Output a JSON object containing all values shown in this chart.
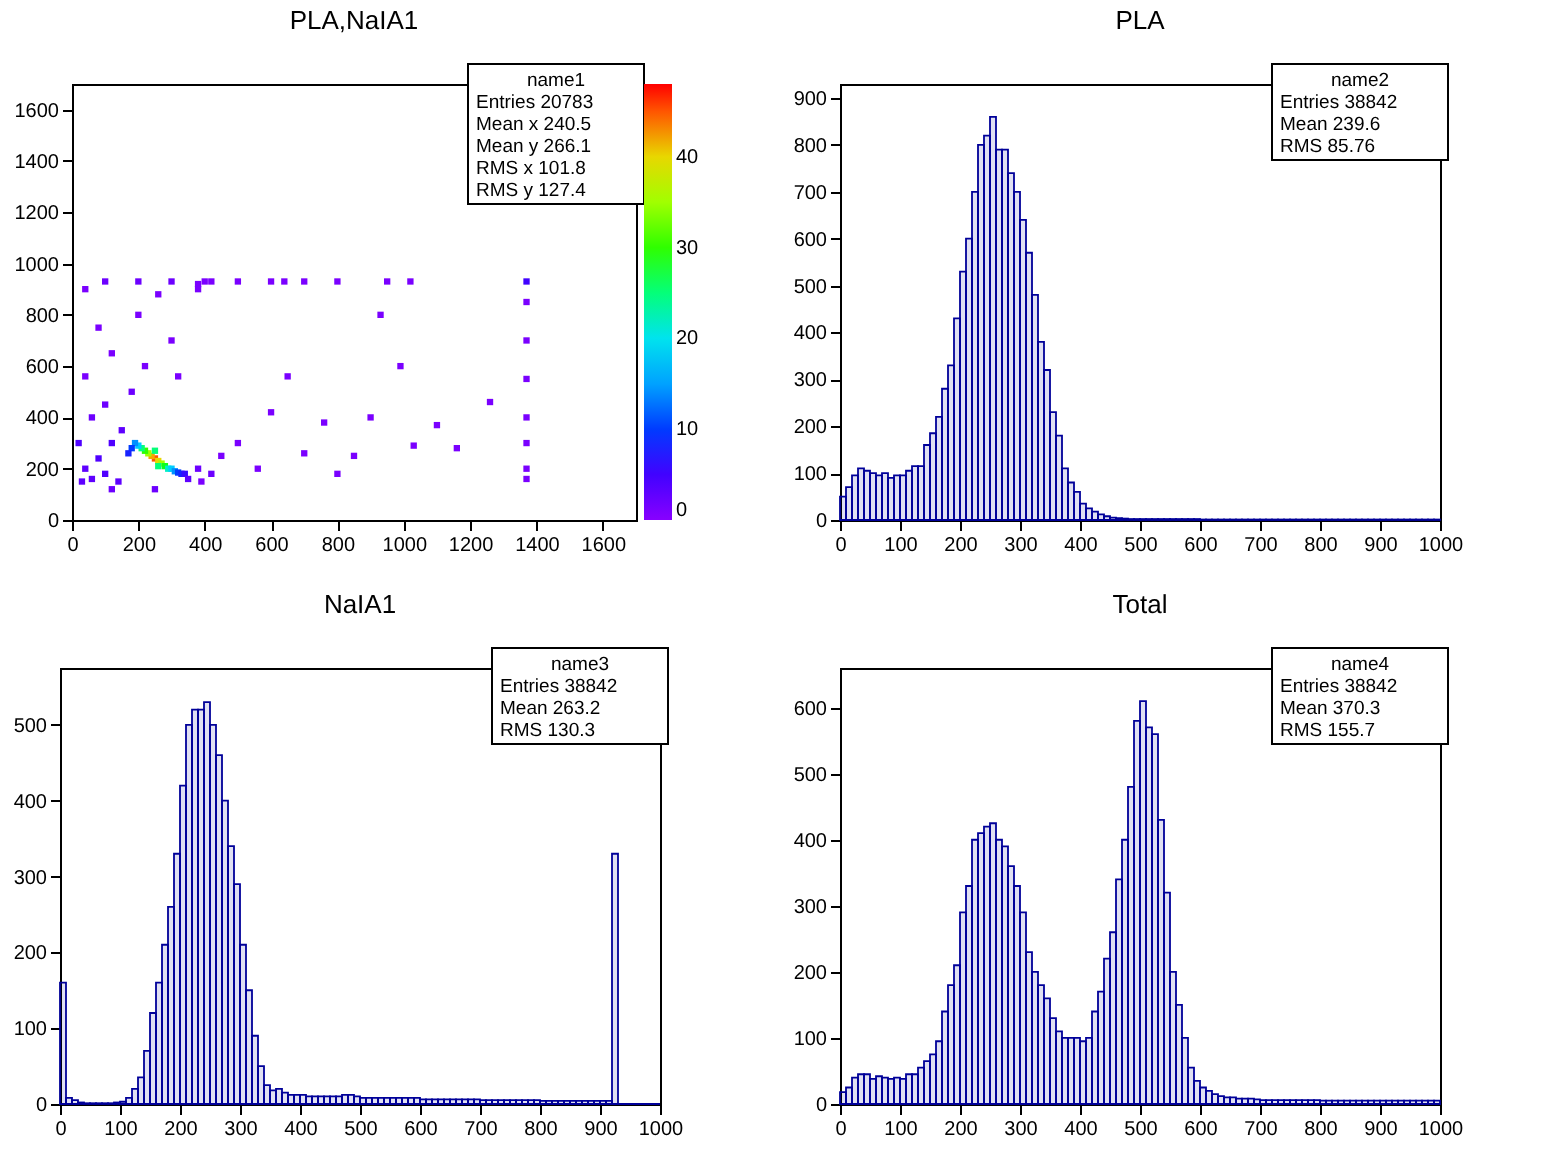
{
  "chart_data": [
    {
      "type": "scatter",
      "title": "PLA,NaIA1",
      "marker": "square",
      "x": [
        250,
        240,
        260,
        230,
        270,
        220,
        280,
        210,
        290,
        300,
        200,
        310,
        190,
        320,
        180,
        250,
        260,
        330,
        170,
        340,
        40,
        60,
        80,
        100,
        120,
        140,
        150,
        60,
        100,
        180,
        40,
        220,
        120,
        300,
        80,
        200,
        40,
        260,
        380,
        420,
        350,
        380,
        420,
        450,
        500,
        560,
        600,
        650,
        700,
        760,
        800,
        850,
        900,
        930,
        990,
        1030,
        1100,
        1160,
        1260,
        1370,
        1370,
        1370,
        1370,
        1370,
        1370,
        1370,
        1370,
        500,
        640,
        800,
        950,
        1020,
        380,
        320,
        20,
        30,
        120,
        250,
        390,
        600,
        700,
        100,
        200,
        300,
        400
      ],
      "values": [
        240,
        250,
        230,
        260,
        220,
        270,
        210,
        280,
        200,
        200,
        290,
        190,
        300,
        185,
        280,
        270,
        210,
        180,
        260,
        180,
        200,
        160,
        240,
        180,
        300,
        150,
        350,
        400,
        450,
        500,
        560,
        600,
        650,
        700,
        750,
        800,
        900,
        880,
        920,
        930,
        160,
        200,
        180,
        250,
        300,
        200,
        420,
        560,
        260,
        380,
        180,
        250,
        400,
        800,
        600,
        290,
        370,
        280,
        460,
        930,
        850,
        700,
        550,
        400,
        300,
        200,
        160,
        930,
        930,
        930,
        930,
        930,
        900,
        560,
        300,
        150,
        120,
        120,
        150,
        930,
        930,
        930,
        930,
        930,
        930
      ],
      "cvalues": [
        45,
        42,
        40,
        35,
        35,
        30,
        28,
        25,
        22,
        18,
        18,
        14,
        14,
        10,
        10,
        25,
        25,
        8,
        8,
        6,
        3,
        3,
        4,
        4,
        4,
        3,
        3,
        2,
        2,
        2,
        1,
        1,
        1,
        1,
        1,
        1,
        1,
        1,
        1,
        1,
        3,
        2,
        2,
        1,
        1,
        1,
        1,
        1,
        1,
        1,
        1,
        1,
        1,
        1,
        1,
        1,
        1,
        1,
        1,
        5,
        1,
        1,
        1,
        1,
        1,
        1,
        1,
        1,
        1,
        1,
        1,
        1,
        1,
        1,
        4,
        3,
        2,
        2,
        1,
        1,
        1,
        2,
        2,
        2,
        1
      ],
      "clim": [
        0,
        48
      ],
      "cticks": [
        0,
        10,
        20,
        30,
        40
      ],
      "xlim": [
        0,
        1700
      ],
      "xticks": [
        0,
        200,
        400,
        600,
        800,
        1000,
        1200,
        1400,
        1600
      ],
      "ylim": [
        0,
        1700
      ],
      "yticks": [
        0,
        200,
        400,
        600,
        800,
        1000,
        1200,
        1400,
        1600
      ],
      "annotations": [
        "name1",
        "Entries 20783",
        "Mean x 240.5",
        "Mean y 266.1",
        "RMS x 101.8",
        "RMS y 127.4"
      ]
    },
    {
      "type": "histogram",
      "title": "PLA",
      "color": "#000099",
      "bins": [
        0,
        10,
        20,
        30,
        40,
        50,
        60,
        70,
        80,
        90,
        100,
        110,
        120,
        130,
        140,
        150,
        160,
        170,
        180,
        190,
        200,
        210,
        220,
        230,
        240,
        250,
        260,
        270,
        280,
        290,
        300,
        310,
        320,
        330,
        340,
        350,
        360,
        370,
        380,
        390,
        400,
        410,
        420,
        430,
        440,
        450,
        460,
        470,
        480,
        490,
        500,
        510,
        520,
        530,
        540,
        550,
        560,
        570,
        580,
        590,
        600,
        610,
        620,
        630,
        640,
        650,
        660,
        670,
        680,
        690,
        700,
        710,
        720,
        730,
        740,
        750,
        760,
        770,
        780,
        790,
        800,
        810,
        820,
        830,
        840,
        850,
        860,
        870,
        880,
        890,
        900,
        910,
        920,
        930,
        940,
        950,
        960,
        970,
        980,
        990,
        1000
      ],
      "values": [
        50,
        70,
        95,
        110,
        105,
        100,
        95,
        100,
        90,
        95,
        95,
        105,
        115,
        115,
        160,
        185,
        220,
        280,
        330,
        430,
        530,
        600,
        700,
        800,
        820,
        860,
        790,
        790,
        740,
        700,
        640,
        570,
        480,
        380,
        320,
        230,
        180,
        110,
        80,
        60,
        35,
        25,
        18,
        12,
        8,
        5,
        4,
        3,
        2,
        2,
        2,
        2,
        2,
        2,
        2,
        2,
        2,
        2,
        2,
        2,
        1,
        1,
        1,
        1,
        1,
        1,
        1,
        1,
        1,
        1,
        1,
        1,
        1,
        1,
        1,
        1,
        1,
        1,
        1,
        1,
        1,
        1,
        1,
        1,
        1,
        1,
        1,
        1,
        1,
        1,
        1,
        1,
        1,
        1,
        1,
        1,
        1,
        1,
        1,
        1
      ],
      "xlim": [
        0,
        1000
      ],
      "xticks": [
        0,
        100,
        200,
        300,
        400,
        500,
        600,
        700,
        800,
        900,
        1000
      ],
      "ylim": [
        0,
        930
      ],
      "yticks": [
        0,
        100,
        200,
        300,
        400,
        500,
        600,
        700,
        800,
        900
      ],
      "annotations": [
        "name2",
        "Entries 38842",
        "Mean 239.6",
        "RMS 85.76"
      ]
    },
    {
      "type": "histogram",
      "title": "NaIA1",
      "color": "#000099",
      "bins": [
        0,
        10,
        20,
        30,
        40,
        50,
        60,
        70,
        80,
        90,
        100,
        110,
        120,
        130,
        140,
        150,
        160,
        170,
        180,
        190,
        200,
        210,
        220,
        230,
        240,
        250,
        260,
        270,
        280,
        290,
        300,
        310,
        320,
        330,
        340,
        350,
        360,
        370,
        380,
        390,
        400,
        410,
        420,
        430,
        440,
        450,
        460,
        470,
        480,
        490,
        500,
        510,
        520,
        530,
        540,
        550,
        560,
        570,
        580,
        590,
        600,
        610,
        620,
        630,
        640,
        650,
        660,
        670,
        680,
        690,
        700,
        710,
        720,
        730,
        740,
        750,
        760,
        770,
        780,
        790,
        800,
        810,
        820,
        830,
        840,
        850,
        860,
        870,
        880,
        890,
        900,
        910,
        920,
        930,
        940,
        950,
        960,
        970,
        980,
        990,
        1000
      ],
      "values": [
        160,
        8,
        5,
        2,
        1,
        1,
        1,
        1,
        1,
        2,
        3,
        8,
        20,
        35,
        70,
        120,
        160,
        210,
        260,
        330,
        420,
        500,
        520,
        520,
        530,
        500,
        460,
        400,
        340,
        290,
        210,
        150,
        90,
        50,
        25,
        18,
        20,
        15,
        12,
        12,
        12,
        10,
        10,
        10,
        10,
        10,
        10,
        12,
        12,
        10,
        8,
        8,
        8,
        8,
        8,
        8,
        8,
        8,
        8,
        8,
        6,
        6,
        6,
        6,
        6,
        6,
        6,
        6,
        6,
        6,
        5,
        5,
        5,
        5,
        5,
        5,
        5,
        5,
        5,
        5,
        4,
        4,
        4,
        4,
        4,
        4,
        4,
        4,
        4,
        4,
        4,
        4,
        330,
        0,
        0,
        0,
        0,
        0,
        0,
        0
      ],
      "xlim": [
        0,
        1000
      ],
      "xticks": [
        0,
        100,
        200,
        300,
        400,
        500,
        600,
        700,
        800,
        900,
        1000
      ],
      "ylim": [
        0,
        575
      ],
      "yticks": [
        0,
        100,
        200,
        300,
        400,
        500
      ],
      "annotations": [
        "name3",
        "Entries 38842",
        "Mean 263.2",
        "RMS 130.3"
      ]
    },
    {
      "type": "histogram",
      "title": "Total",
      "color": "#000099",
      "bins": [
        0,
        10,
        20,
        30,
        40,
        50,
        60,
        70,
        80,
        90,
        100,
        110,
        120,
        130,
        140,
        150,
        160,
        170,
        180,
        190,
        200,
        210,
        220,
        230,
        240,
        250,
        260,
        270,
        280,
        290,
        300,
        310,
        320,
        330,
        340,
        350,
        360,
        370,
        380,
        390,
        400,
        410,
        420,
        430,
        440,
        450,
        460,
        470,
        480,
        490,
        500,
        510,
        520,
        530,
        540,
        550,
        560,
        570,
        580,
        590,
        600,
        610,
        620,
        630,
        640,
        650,
        660,
        670,
        680,
        690,
        700,
        710,
        720,
        730,
        740,
        750,
        760,
        770,
        780,
        790,
        800,
        810,
        820,
        830,
        840,
        850,
        860,
        870,
        880,
        890,
        900,
        910,
        920,
        930,
        940,
        950,
        960,
        970,
        980,
        990,
        1000
      ],
      "values": [
        18,
        25,
        40,
        45,
        45,
        38,
        42,
        40,
        38,
        40,
        38,
        45,
        45,
        55,
        65,
        75,
        95,
        140,
        180,
        210,
        290,
        330,
        400,
        410,
        420,
        425,
        400,
        390,
        360,
        330,
        290,
        230,
        200,
        180,
        160,
        130,
        110,
        100,
        100,
        100,
        95,
        100,
        140,
        170,
        220,
        260,
        340,
        400,
        480,
        580,
        610,
        570,
        560,
        430,
        320,
        200,
        150,
        100,
        55,
        35,
        25,
        20,
        15,
        12,
        10,
        10,
        8,
        8,
        8,
        7,
        6,
        6,
        6,
        6,
        6,
        6,
        6,
        6,
        6,
        6,
        5,
        5,
        5,
        5,
        5,
        5,
        5,
        5,
        5,
        5,
        5,
        5,
        5,
        5,
        5,
        5,
        5,
        5,
        5,
        5
      ],
      "xlim": [
        0,
        1000
      ],
      "xticks": [
        0,
        100,
        200,
        300,
        400,
        500,
        600,
        700,
        800,
        900,
        1000
      ],
      "ylim": [
        0,
        660
      ],
      "yticks": [
        0,
        100,
        200,
        300,
        400,
        500,
        600
      ],
      "annotations": [
        "name4",
        "Entries 38842",
        "Mean 370.3",
        "RMS 155.7"
      ]
    }
  ]
}
